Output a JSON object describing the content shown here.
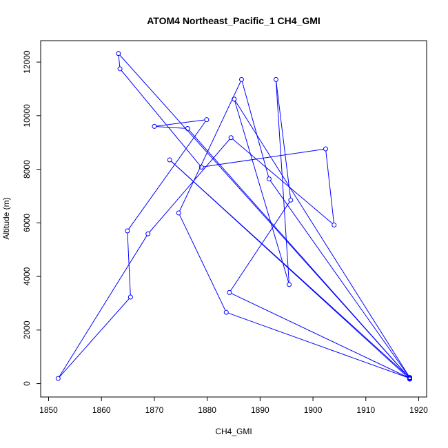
{
  "chart_data": {
    "type": "line",
    "title": "ATOM4 Northeast_Pacific_1 CH4_GMI",
    "xlabel": "CH4_GMI",
    "ylabel": "Altitude (m)",
    "xlim": [
      1848.5,
      1921.5
    ],
    "ylim": [
      -500,
      12800
    ],
    "xticks": [
      1850,
      1860,
      1870,
      1880,
      1890,
      1900,
      1910,
      1920
    ],
    "yticks": [
      0,
      2000,
      4000,
      6000,
      8000,
      10000,
      12000
    ],
    "grid": false,
    "series": [
      {
        "color": "#0000ff",
        "marker": "open-circle",
        "x": [
          1918.3,
          1885.1,
          1895.5,
          1893.0,
          1895.8,
          1884.2,
          1918.3,
          1863.2,
          1863.5,
          1878.9,
          1902.4,
          1904.0,
          1884.5,
          1868.8,
          1851.8,
          1865.5,
          1864.9,
          1879.9,
          1870.0,
          1876.3,
          1918.3,
          1883.6,
          1874.6,
          1886.5,
          1891.7,
          1918.3,
          1872.9,
          1918.3,
          1918.3,
          1918.3,
          1918.3,
          1918.3
        ],
        "y": [
          230,
          10620,
          3700,
          11350,
          6850,
          3400,
          200,
          12320,
          11750,
          8080,
          8760,
          5920,
          9180,
          5590,
          190,
          3230,
          5700,
          9850,
          9600,
          9520,
          200,
          2660,
          6370,
          11350,
          7640,
          220,
          8350,
          170,
          200,
          170,
          190,
          180
        ]
      }
    ]
  }
}
